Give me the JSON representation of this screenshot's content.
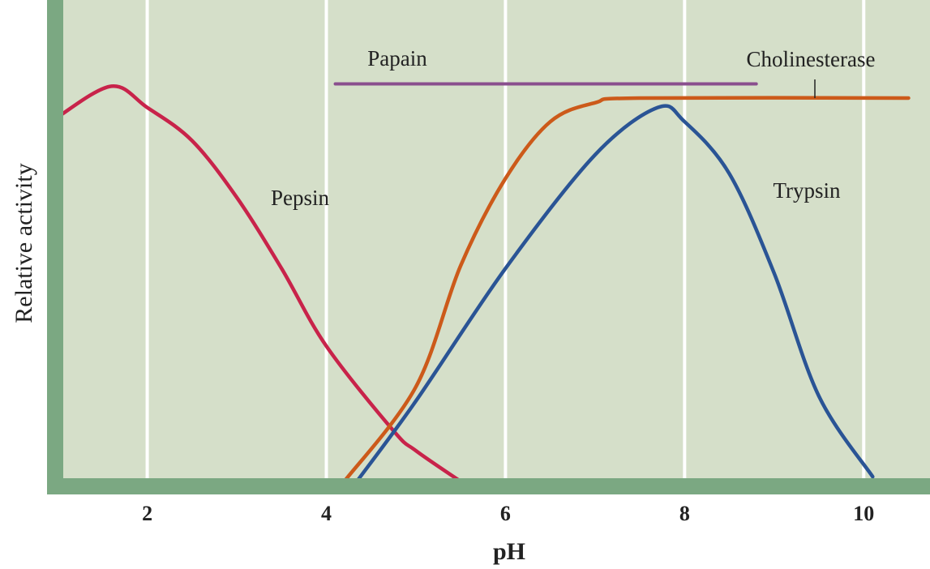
{
  "chart_data": {
    "type": "line",
    "x_label": "pH",
    "y_label": "Relative activity",
    "xlim": [
      0.99,
      10.74
    ],
    "ylim": [
      0,
      100
    ],
    "xticks": [
      2,
      4,
      6,
      8,
      10
    ],
    "grid": true,
    "series": [
      {
        "name": "Pepsin",
        "color": "#c8234a",
        "x": [
          1,
          1.6,
          2,
          2.5,
          3,
          3.5,
          4,
          4.75,
          5,
          5.5
        ],
        "values": [
          77,
          83.5,
          79,
          72,
          60,
          45,
          28.6,
          10.7,
          6.5,
          0
        ]
      },
      {
        "name": "Papain",
        "color": "#8a4f8e",
        "x": [
          4.1,
          8.8
        ],
        "values": [
          84,
          84
        ]
      },
      {
        "name": "Cholinesterase",
        "color": "#cc5a1a",
        "x": [
          4.2,
          5,
          5.5,
          6,
          6.5,
          7,
          7.5,
          10.5
        ],
        "values": [
          0,
          20,
          45.6,
          64,
          76,
          80,
          81,
          81
        ]
      },
      {
        "name": "Trypsin",
        "color": "#2a5495",
        "x": [
          4.34,
          5,
          6,
          7,
          7.7,
          8,
          8.5,
          9,
          9.5,
          10.1
        ],
        "values": [
          0,
          17,
          45,
          69,
          79,
          76,
          65,
          44,
          18,
          1
        ]
      }
    ]
  }
}
